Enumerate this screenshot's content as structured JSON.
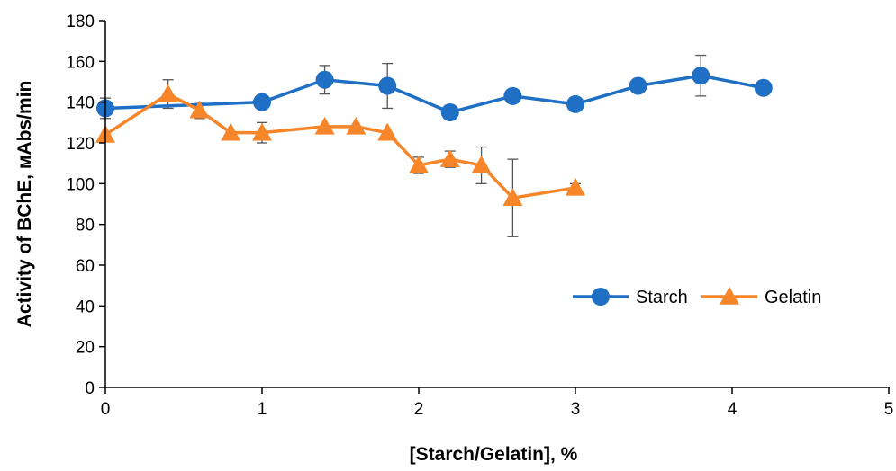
{
  "chart_data": {
    "type": "line",
    "title": "",
    "xlabel": "[Starch/Gelatin], %",
    "ylabel": "Activity of BChE, мAbs/min",
    "xlim": [
      0,
      5
    ],
    "ylim": [
      0,
      180
    ],
    "x_ticks": [
      0,
      1,
      2,
      3,
      4,
      5
    ],
    "y_ticks": [
      0,
      20,
      40,
      60,
      80,
      100,
      120,
      140,
      160,
      180
    ],
    "grid": false,
    "legend_position": "bottom-right",
    "series": [
      {
        "name": "Starch",
        "color": "#1f6fc5",
        "marker": "circle",
        "points": [
          {
            "x": 0,
            "y": 137,
            "err": 5
          },
          {
            "x": 1,
            "y": 140,
            "err": 0
          },
          {
            "x": 1.4,
            "y": 151,
            "err": 7
          },
          {
            "x": 1.8,
            "y": 148,
            "err": 11
          },
          {
            "x": 2.2,
            "y": 135,
            "err": 0
          },
          {
            "x": 2.6,
            "y": 143,
            "err": 0
          },
          {
            "x": 3,
            "y": 139,
            "err": 0
          },
          {
            "x": 3.4,
            "y": 148,
            "err": 0
          },
          {
            "x": 3.8,
            "y": 153,
            "err": 10
          },
          {
            "x": 4.2,
            "y": 147,
            "err": 0
          }
        ]
      },
      {
        "name": "Gelatin",
        "color": "#f7862a",
        "marker": "triangle",
        "points": [
          {
            "x": 0,
            "y": 124,
            "err": 0
          },
          {
            "x": 0.4,
            "y": 144,
            "err": 7
          },
          {
            "x": 0.6,
            "y": 136,
            "err": 4
          },
          {
            "x": 0.8,
            "y": 125,
            "err": 0
          },
          {
            "x": 1,
            "y": 125,
            "err": 5
          },
          {
            "x": 1.4,
            "y": 128,
            "err": 0
          },
          {
            "x": 1.6,
            "y": 128,
            "err": 0
          },
          {
            "x": 1.8,
            "y": 125,
            "err": 0
          },
          {
            "x": 2,
            "y": 109,
            "err": 4
          },
          {
            "x": 2.2,
            "y": 112,
            "err": 4
          },
          {
            "x": 2.4,
            "y": 109,
            "err": 9
          },
          {
            "x": 2.6,
            "y": 93,
            "err": 19
          },
          {
            "x": 3,
            "y": 98,
            "err": 2
          }
        ]
      }
    ]
  }
}
